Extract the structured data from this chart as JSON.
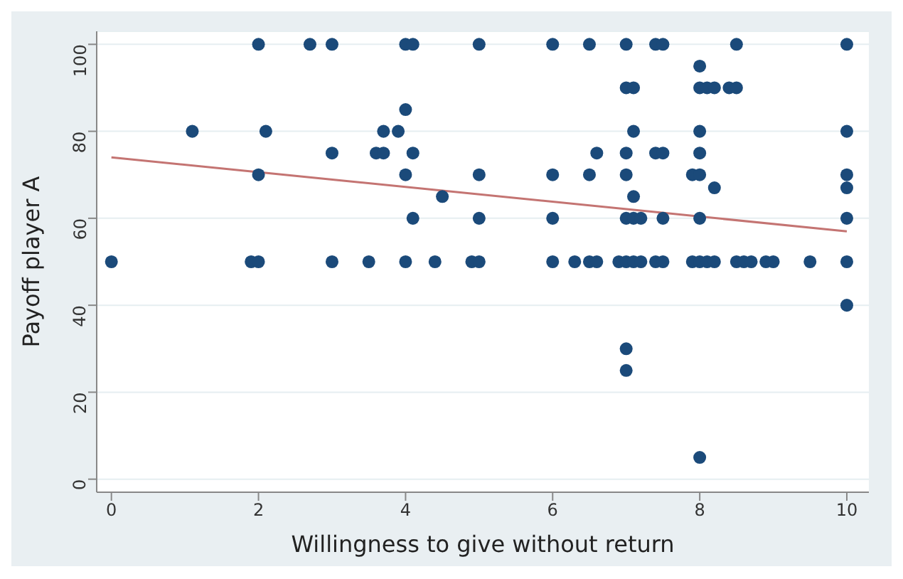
{
  "chart_data": {
    "type": "scatter",
    "xlabel": "Willingness to give without return",
    "ylabel": "Payoff player A",
    "xlim": [
      -0.2,
      10.3
    ],
    "ylim": [
      -3,
      103
    ],
    "xticks": [
      0,
      2,
      4,
      6,
      8,
      10
    ],
    "yticks": [
      0,
      20,
      40,
      60,
      80,
      100
    ],
    "grid": "y",
    "series": [
      {
        "marker": "circle",
        "color": "#1b4a7a",
        "x": [
          0,
          1.1,
          1.9,
          2.0,
          2.0,
          2.0,
          2.1,
          2.7,
          3.0,
          3.0,
          3.0,
          3.5,
          3.6,
          3.7,
          3.7,
          3.9,
          4.0,
          4.0,
          4.0,
          4.1,
          4.0,
          4.1,
          4.1,
          4.4,
          4.5,
          4.9,
          5.0,
          5.0,
          5.0,
          5.0,
          6.0,
          6.0,
          6.0,
          6.0,
          6.3,
          6.5,
          6.5,
          6.5,
          6.6,
          6.6,
          6.9,
          7.0,
          7.0,
          7.1,
          7.0,
          7.0,
          7.1,
          7.1,
          7.0,
          7.1,
          7.2,
          7.0,
          7.1,
          7.2,
          7.0,
          7.0,
          7.4,
          7.5,
          7.4,
          7.5,
          7.5,
          7.4,
          7.5,
          7.9,
          8.0,
          8.0,
          8.0,
          8.1,
          8.2,
          8.0,
          8.0,
          8.2,
          8.0,
          7.9,
          8.0,
          8.1,
          8.2,
          8.0,
          8.4,
          8.5,
          8.5,
          8.5,
          8.6,
          8.7,
          8.9,
          9.0,
          9.5,
          10,
          10,
          10,
          10,
          10,
          10,
          10
        ],
        "values": [
          50,
          80,
          50,
          50,
          100,
          70,
          80,
          100,
          100,
          75,
          50,
          50,
          75,
          75,
          80,
          80,
          85,
          70,
          100,
          100,
          50,
          75,
          60,
          50,
          65,
          50,
          50,
          100,
          70,
          60,
          100,
          70,
          60,
          50,
          50,
          100,
          70,
          50,
          50,
          75,
          50,
          100,
          90,
          90,
          75,
          70,
          80,
          65,
          60,
          60,
          60,
          50,
          50,
          50,
          30,
          25,
          100,
          100,
          75,
          75,
          60,
          50,
          50,
          70,
          70,
          95,
          90,
          90,
          90,
          80,
          75,
          67,
          60,
          50,
          50,
          50,
          50,
          5,
          90,
          90,
          100,
          50,
          50,
          50,
          50,
          50,
          50,
          100,
          80,
          70,
          67,
          60,
          50,
          40
        ]
      },
      {
        "type": "line",
        "color": "#c47472",
        "x": [
          0,
          10
        ],
        "values": [
          74,
          57
        ]
      }
    ]
  }
}
